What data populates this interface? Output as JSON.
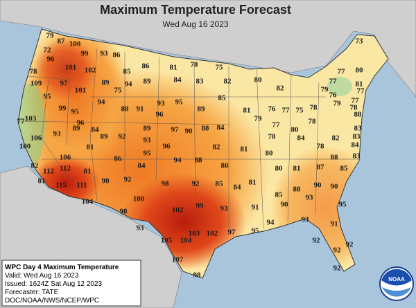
{
  "header": {
    "title": "Maximum Temperature Forecast",
    "subtitle": "Wed Aug 16 2023"
  },
  "temperatures": [
    79,
    87,
    73,
    100,
    99,
    93,
    86,
    72,
    96,
    101,
    102,
    85,
    86,
    81,
    78,
    75,
    77,
    80,
    78,
    109,
    97,
    89,
    94,
    89,
    84,
    83,
    82,
    80,
    77,
    81,
    101,
    75,
    82,
    79,
    77,
    95,
    94,
    93,
    95,
    85,
    76,
    77,
    99,
    95,
    88,
    91,
    89,
    81,
    76,
    77,
    75,
    78,
    79,
    78,
    77,
    103,
    96,
    96,
    84,
    79,
    77,
    78,
    88,
    83,
    93,
    89,
    89,
    97,
    90,
    88,
    84,
    80,
    83,
    100,
    106,
    92,
    89,
    93,
    78,
    84,
    82,
    81,
    95,
    96,
    82,
    81,
    80,
    78,
    84,
    106,
    86,
    94,
    88,
    80,
    80,
    81,
    87,
    88,
    83,
    82,
    112,
    112,
    81,
    84,
    85,
    81,
    115,
    111,
    90,
    92,
    98,
    92,
    85,
    84,
    81,
    85,
    88,
    90,
    90,
    104,
    100,
    93,
    99,
    102,
    91,
    90,
    93,
    98,
    93,
    103,
    102,
    97,
    95,
    94,
    93,
    91,
    95,
    105,
    104,
    92,
    92,
    92,
    107,
    92,
    98
  ],
  "info_box": {
    "heading": "WPC Day 4 Maximum Temperature",
    "valid": "Valid: Wed Aug 16 2023",
    "issued": "Issued: 1624Z Sat Aug 12 2023",
    "forecaster": "Forecaster: TATE",
    "source": "DOC/NOAA/NWS/NCEP/WPC"
  },
  "logo": "NOAA"
}
